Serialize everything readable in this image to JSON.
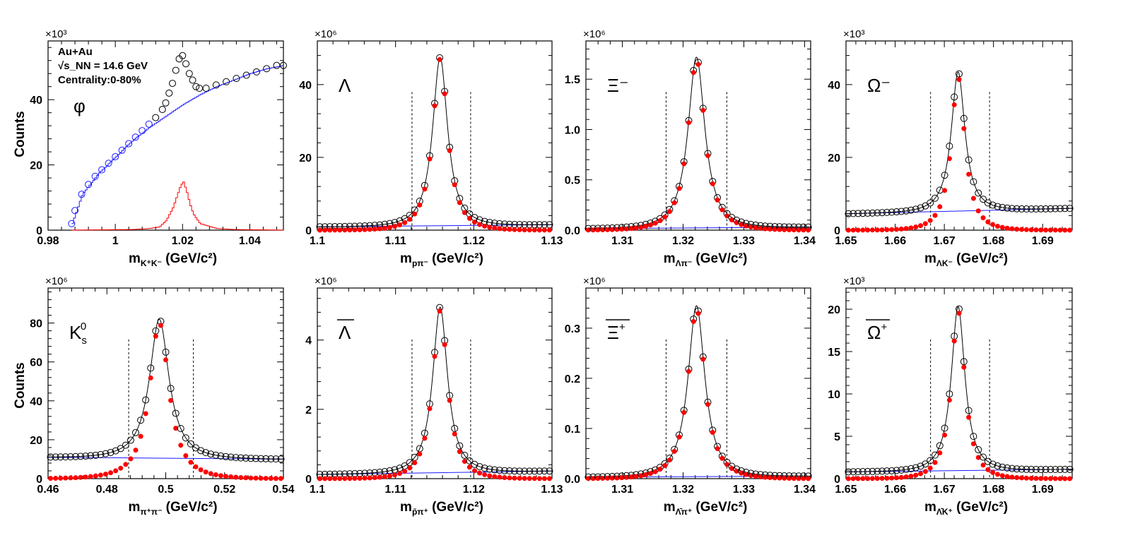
{
  "y_axis_label": "Counts",
  "chart_data": [
    {
      "id": "phi",
      "type": "scatter",
      "particle": "φ",
      "annotations": [
        "Au+Au",
        "√s_NN = 14.6 GeV",
        "Centrality:0-80%"
      ],
      "exponent": "×10³",
      "x_label_main": "m",
      "x_label_sub": "K⁺K⁻",
      "x_label_unit": " (GeV/c²)",
      "xlim": [
        0.98,
        1.05
      ],
      "ylim": [
        0,
        58
      ],
      "xticks": [
        0.98,
        1,
        1.02,
        1.04
      ],
      "xtick_labels": [
        "0.98",
        "1",
        "1.02",
        "1.04"
      ],
      "yticks": [
        0,
        20,
        40
      ],
      "ytick_labels": [
        "0",
        "20",
        "40"
      ],
      "cuts": [],
      "fg_points": [
        [
          0.987,
          2
        ],
        [
          0.988,
          6
        ],
        [
          0.99,
          11
        ],
        [
          0.992,
          14
        ],
        [
          0.994,
          16.5
        ],
        [
          0.996,
          18.5
        ],
        [
          0.998,
          20.5
        ],
        [
          1.0,
          22.5
        ],
        [
          1.002,
          24.5
        ],
        [
          1.004,
          26.5
        ],
        [
          1.006,
          28.5
        ],
        [
          1.008,
          30.5
        ],
        [
          1.01,
          32.5
        ],
        [
          1.012,
          34.5
        ],
        [
          1.014,
          37
        ],
        [
          1.015,
          39
        ],
        [
          1.016,
          42
        ],
        [
          1.017,
          45
        ],
        [
          1.018,
          49
        ],
        [
          1.019,
          52.5
        ],
        [
          1.02,
          53.5
        ],
        [
          1.021,
          51
        ],
        [
          1.022,
          48
        ],
        [
          1.023,
          46
        ],
        [
          1.024,
          44
        ],
        [
          1.025,
          43.5
        ],
        [
          1.027,
          43.5
        ],
        [
          1.03,
          44.5
        ],
        [
          1.033,
          45.5
        ],
        [
          1.036,
          46.5
        ],
        [
          1.039,
          47.5
        ],
        [
          1.042,
          48.5
        ],
        [
          1.045,
          49.5
        ],
        [
          1.048,
          50.5
        ],
        [
          1.05,
          50.5
        ]
      ],
      "bg_curve": [
        [
          0.987,
          2
        ],
        [
          0.99,
          11
        ],
        [
          0.995,
          17.5
        ],
        [
          1.0,
          22.5
        ],
        [
          1.005,
          27.5
        ],
        [
          1.01,
          31.5
        ],
        [
          1.015,
          35
        ],
        [
          1.02,
          38.5
        ],
        [
          1.025,
          41.5
        ],
        [
          1.03,
          44
        ],
        [
          1.035,
          46
        ],
        [
          1.04,
          48
        ],
        [
          1.045,
          49.5
        ],
        [
          1.05,
          50.5
        ]
      ],
      "signal_hist": [
        [
          0.987,
          0
        ],
        [
          1.005,
          0.2
        ],
        [
          1.01,
          0.5
        ],
        [
          1.013,
          1
        ],
        [
          1.015,
          3
        ],
        [
          1.017,
          7
        ],
        [
          1.018,
          10
        ],
        [
          1.019,
          13
        ],
        [
          1.02,
          15
        ],
        [
          1.021,
          12
        ],
        [
          1.022,
          8
        ],
        [
          1.023,
          5
        ],
        [
          1.025,
          2
        ],
        [
          1.03,
          0.5
        ],
        [
          1.035,
          0.2
        ],
        [
          1.05,
          0
        ]
      ]
    },
    {
      "id": "lambda",
      "type": "scatter",
      "particle": "Λ",
      "exponent": "×10⁶",
      "x_label_main": "m",
      "x_label_sub": "pπ⁻",
      "x_label_unit": " (GeV/c²)",
      "xlim": [
        1.1,
        1.13
      ],
      "ylim": [
        0,
        52
      ],
      "xticks": [
        1.1,
        1.11,
        1.12,
        1.13
      ],
      "xtick_labels": [
        "1.1",
        "1.11",
        "1.12",
        "1.13"
      ],
      "yticks": [
        0,
        20,
        40
      ],
      "ytick_labels": [
        "0",
        "20",
        "40"
      ],
      "cuts": [
        1.1121,
        1.1196
      ],
      "peak": {
        "mean": 1.1157,
        "sigma": 0.0011,
        "amp_total": 47.5,
        "amp_signal": 47.0,
        "bg": [
          0.9,
          1.5
        ]
      }
    },
    {
      "id": "xi",
      "type": "scatter",
      "particle": "Ξ⁻",
      "exponent": "×10⁶",
      "x_label_main": "m",
      "x_label_sub": "Λπ⁻",
      "x_label_unit": " (GeV/c²)",
      "xlim": [
        1.304,
        1.341
      ],
      "ylim": [
        0,
        1.88
      ],
      "xticks": [
        1.31,
        1.32,
        1.33,
        1.34
      ],
      "xtick_labels": [
        "1.31",
        "1.32",
        "1.33",
        "1.34"
      ],
      "yticks": [
        0,
        0.5,
        1,
        1.5
      ],
      "ytick_labels": [
        "0.0",
        "0.5",
        "1.0",
        "1.5"
      ],
      "cuts": [
        1.3172,
        1.3272
      ],
      "peak": {
        "mean": 1.3222,
        "sigma": 0.0016,
        "amp_total": 1.72,
        "amp_signal": 1.7,
        "bg": [
          0.015,
          0.03
        ]
      }
    },
    {
      "id": "omega",
      "type": "scatter",
      "particle": "Ω⁻",
      "exponent": "×10³",
      "x_label_main": "m",
      "x_label_sub": "ΛK⁻",
      "x_label_unit": " (GeV/c²)",
      "xlim": [
        1.65,
        1.696
      ],
      "ylim": [
        0,
        52
      ],
      "xticks": [
        1.65,
        1.66,
        1.67,
        1.68,
        1.69
      ],
      "xtick_labels": [
        "1.65",
        "1.66",
        "1.67",
        "1.68",
        "1.69"
      ],
      "yticks": [
        0,
        20,
        40
      ],
      "ytick_labels": [
        "0",
        "20",
        "40"
      ],
      "cuts": [
        1.6672,
        1.6792
      ],
      "peak": {
        "mean": 1.6728,
        "sigma": 0.0016,
        "amp_total": 43.5,
        "amp_signal": 42.0,
        "bg": [
          4.5,
          6.0
        ]
      }
    },
    {
      "id": "k0s",
      "type": "scatter",
      "particle": "K",
      "particle_sub": "s",
      "particle_sup": "0",
      "exponent": "×10⁶",
      "x_label_main": "m",
      "x_label_sub": "π⁺π⁻",
      "x_label_unit": " (GeV/c²)",
      "xlim": [
        0.46,
        0.54
      ],
      "ylim": [
        0,
        98
      ],
      "xticks": [
        0.46,
        0.48,
        0.5,
        0.52,
        0.54
      ],
      "xtick_labels": [
        "0.46",
        "0.48",
        "0.5",
        "0.52",
        "0.54"
      ],
      "yticks": [
        0,
        20,
        40,
        60,
        80
      ],
      "ytick_labels": [
        "0",
        "20",
        "40",
        "60",
        "80"
      ],
      "cuts": [
        0.4874,
        0.5094
      ],
      "peak": {
        "mean": 0.4978,
        "sigma": 0.0038,
        "amp_total": 82,
        "amp_signal": 80,
        "bg": [
          11.0,
          10.0
        ]
      }
    },
    {
      "id": "antilambda",
      "type": "scatter",
      "particle": "Λ",
      "overline": true,
      "exponent": "×10⁶",
      "x_label_main": "m",
      "x_label_sub": "p̄π⁺",
      "x_label_unit": " (GeV/c²)",
      "xlim": [
        1.1,
        1.13
      ],
      "ylim": [
        0,
        5.5
      ],
      "xticks": [
        1.1,
        1.11,
        1.12,
        1.13
      ],
      "xtick_labels": [
        "1.1",
        "1.11",
        "1.12",
        "1.13"
      ],
      "yticks": [
        0,
        2,
        4
      ],
      "ytick_labels": [
        "0",
        "2",
        "4"
      ],
      "cuts": [
        1.1121,
        1.1196
      ],
      "peak": {
        "mean": 1.1157,
        "sigma": 0.0011,
        "amp_total": 4.95,
        "amp_signal": 4.85,
        "bg": [
          0.12,
          0.22
        ]
      }
    },
    {
      "id": "antixi",
      "type": "scatter",
      "particle": "Ξ",
      "particle_sup": "+",
      "overline": true,
      "exponent": "×10⁶",
      "x_label_main": "m",
      "x_label_sub": "Λ̄π⁺",
      "x_label_unit": " (GeV/c²)",
      "xlim": [
        1.304,
        1.341
      ],
      "ylim": [
        0,
        0.38
      ],
      "xticks": [
        1.31,
        1.32,
        1.33,
        1.34
      ],
      "xtick_labels": [
        "1.31",
        "1.32",
        "1.33",
        "1.34"
      ],
      "yticks": [
        0,
        0.1,
        0.2,
        0.3
      ],
      "ytick_labels": [
        "0.0",
        "0.1",
        "0.2",
        "0.3"
      ],
      "cuts": [
        1.3172,
        1.3272
      ],
      "peak": {
        "mean": 1.3222,
        "sigma": 0.0016,
        "amp_total": 0.345,
        "amp_signal": 0.34,
        "bg": [
          0.003,
          0.005
        ]
      }
    },
    {
      "id": "antiomega",
      "type": "scatter",
      "particle": "Ω",
      "particle_sup": "+",
      "overline": true,
      "exponent": "×10³",
      "x_label_main": "m",
      "x_label_sub": "Λ̄K⁺",
      "x_label_unit": " (GeV/c²)",
      "xlim": [
        1.65,
        1.696
      ],
      "ylim": [
        0,
        22.5
      ],
      "xticks": [
        1.65,
        1.66,
        1.67,
        1.68,
        1.69
      ],
      "xtick_labels": [
        "1.65",
        "1.66",
        "1.67",
        "1.68",
        "1.69"
      ],
      "yticks": [
        0,
        5,
        10,
        15,
        20
      ],
      "ytick_labels": [
        "0",
        "5",
        "10",
        "15",
        "20"
      ],
      "cuts": [
        1.6672,
        1.6792
      ],
      "peak": {
        "mean": 1.6728,
        "sigma": 0.0016,
        "amp_total": 20.3,
        "amp_signal": 19.8,
        "bg": [
          0.8,
          1.1
        ]
      }
    }
  ]
}
